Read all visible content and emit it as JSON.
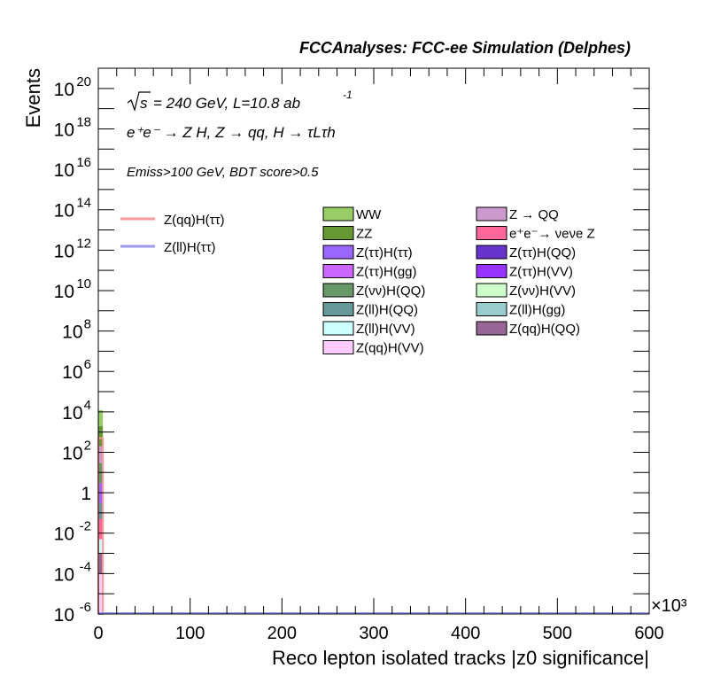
{
  "header": {
    "title": "FCCAnalyses: FCC-ee Simulation (Delphes)"
  },
  "labels": {
    "sqrt_s_line": "= 240 GeV, L=10.8 ab",
    "lumi_exp": "-1",
    "sqrt_s_symbol": "s",
    "process": "e⁺e⁻ → Z H, Z → qq, H → τLτh",
    "cut": "Emiss>100 GeV, BDT score>0.5",
    "x_multiplier": "×10³"
  },
  "chart_data": {
    "type": "bar",
    "title": "FCCAnalyses: FCC-ee Simulation (Delphes)",
    "xlabel": "Reco lepton isolated tracks |z0 significance|",
    "ylabel": "Events",
    "x_scale_factor": 1000,
    "xlim": [
      0,
      600
    ],
    "ylim": [
      1e-06,
      1e+21
    ],
    "y_scale": "log",
    "x_ticks": [
      "0",
      "100",
      "200",
      "300",
      "400",
      "500",
      "600"
    ],
    "y_ticks": [
      "10^-6",
      "10^-4",
      "10^-2",
      "1",
      "10^2",
      "10^4",
      "10^6",
      "10^8",
      "10^10",
      "10^12",
      "10^14",
      "10^16",
      "10^18",
      "10^20"
    ],
    "grid": false,
    "signal_legend": [
      {
        "name": "Z(qq)H(ττ)",
        "color": "#f89b9b"
      },
      {
        "name": "Z(ll)H(ττ)",
        "color": "#9a9af5"
      }
    ],
    "background_legend": [
      {
        "name": "WW",
        "color": "#99cc66"
      },
      {
        "name": "Z → QQ",
        "color": "#cc99cc"
      },
      {
        "name": "ZZ",
        "color": "#669933"
      },
      {
        "name": "e⁺e⁻→ νeνe Z",
        "color": "#ff6699"
      },
      {
        "name": "Z(ττ)H(ττ)",
        "color": "#9966ff"
      },
      {
        "name": "Z(ττ)H(QQ)",
        "color": "#6633cc"
      },
      {
        "name": "Z(ττ)H(gg)",
        "color": "#cc66ff"
      },
      {
        "name": "Z(ττ)H(VV)",
        "color": "#9933ff"
      },
      {
        "name": "Z(νν)H(QQ)",
        "color": "#669966"
      },
      {
        "name": "Z(νν)H(VV)",
        "color": "#ccffcc"
      },
      {
        "name": "Z(ll)H(QQ)",
        "color": "#669999"
      },
      {
        "name": "Z(ll)H(gg)",
        "color": "#99cccc"
      },
      {
        "name": "Z(ll)H(VV)",
        "color": "#ccffff"
      },
      {
        "name": "Z(qq)H(QQ)",
        "color": "#996699"
      },
      {
        "name": "Z(qq)H(VV)",
        "color": "#ffccff"
      }
    ],
    "stack_segments": [
      {
        "name": "Z(qq)H(VV)",
        "from": 1e-06,
        "to": 0.0001,
        "color": "#ffccff"
      },
      {
        "name": "Z(qq)H(QQ)",
        "from": 0.0001,
        "to": 0.001,
        "color": "#996699"
      },
      {
        "name": "Z(ll)H(VV)",
        "from": 0.001,
        "to": 0.005,
        "color": "#ccffff"
      },
      {
        "name": "e⁺e⁻→ νeνe Z",
        "from": 0.005,
        "to": 0.05,
        "color": "#ff6699"
      },
      {
        "name": "Z(ll)H(QQ)",
        "from": 0.05,
        "to": 0.3,
        "color": "#669999"
      },
      {
        "name": "Z(ττ)H(ττ)",
        "from": 0.3,
        "to": 3,
        "color": "#9966ff"
      },
      {
        "name": "Z(νν)H(QQ)",
        "from": 3,
        "to": 30,
        "color": "#669966"
      },
      {
        "name": "Z → QQ",
        "from": 30,
        "to": 200,
        "color": "#cc99cc"
      },
      {
        "name": "ZZ",
        "from": 200,
        "to": 2000,
        "color": "#669933"
      },
      {
        "name": "WW",
        "from": 2000,
        "to": 12000,
        "color": "#99cc66"
      }
    ],
    "first_bin": {
      "x_from": 0,
      "x_to": 5
    },
    "signal_lines": [
      {
        "name": "Z(qq)H(ττ)",
        "x_from": 0,
        "x_to": 5,
        "value": 500,
        "color": "#f89b9b"
      },
      {
        "name": "Z(ll)H(ττ)",
        "x_from": 0,
        "x_to": 5,
        "value": 1e-06,
        "color": "#9a9af5"
      }
    ]
  }
}
